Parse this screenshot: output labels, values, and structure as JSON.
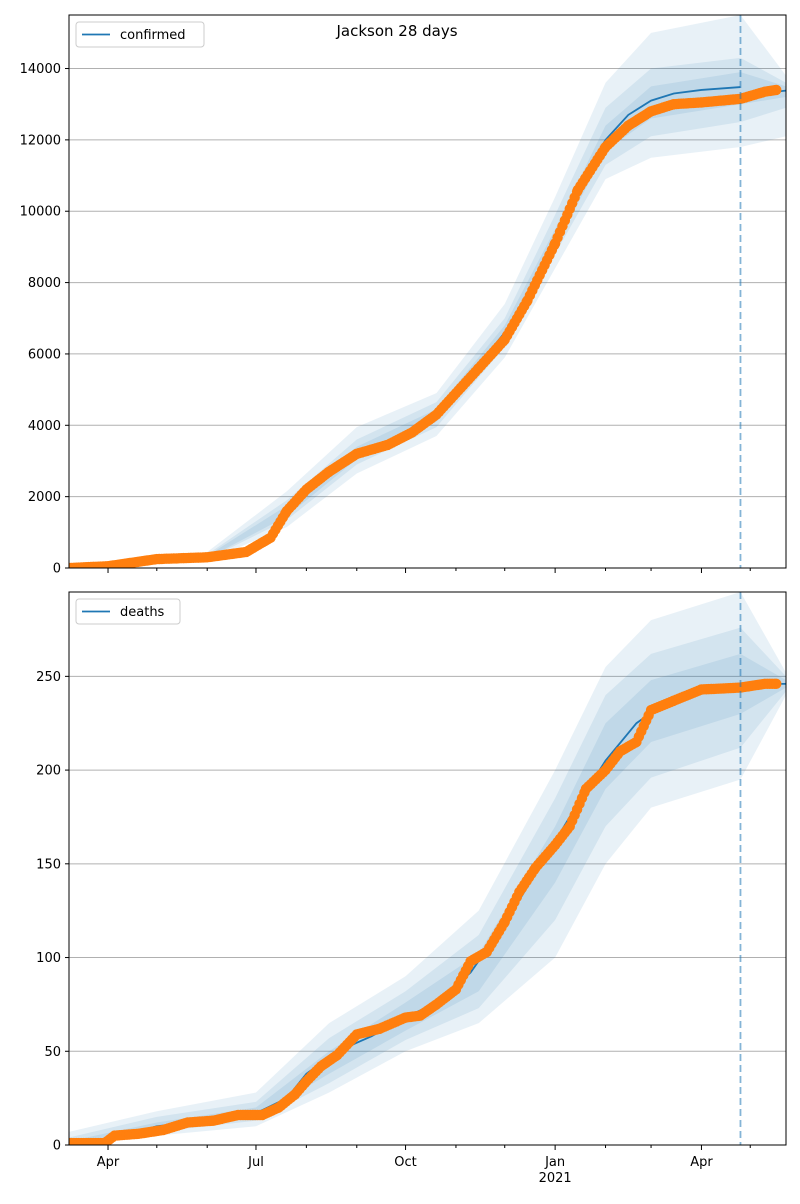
{
  "title": "Jackson 28 days",
  "colors": {
    "model": "#1f77b4",
    "observed": "#ff7f0e",
    "band": "#1f77b4",
    "grid": "#b0b0b0",
    "divider": "#1f77b4"
  },
  "chart_data": [
    {
      "type": "line",
      "legend": "top-left",
      "grid": "y",
      "series_name": "confirmed",
      "ylim": [
        0,
        15500
      ],
      "yticks": [
        0,
        2000,
        4000,
        6000,
        8000,
        10000,
        12000,
        14000
      ],
      "xlim": [
        "2020-03-08",
        "2021-05-23"
      ],
      "xtick_labels": [],
      "forecast_start": "2021-04-25",
      "model_line": [
        [
          "2020-03-08",
          0
        ],
        [
          "2020-04-01",
          60
        ],
        [
          "2020-05-01",
          230
        ],
        [
          "2020-06-01",
          300
        ],
        [
          "2020-06-25",
          450
        ],
        [
          "2020-07-10",
          850
        ],
        [
          "2020-07-20",
          1600
        ],
        [
          "2020-08-01",
          2200
        ],
        [
          "2020-08-15",
          2700
        ],
        [
          "2020-09-01",
          3200
        ],
        [
          "2020-09-20",
          3450
        ],
        [
          "2020-10-05",
          3800
        ],
        [
          "2020-10-20",
          4300
        ],
        [
          "2020-11-01",
          4900
        ],
        [
          "2020-11-15",
          5700
        ],
        [
          "2020-12-01",
          6600
        ],
        [
          "2020-12-15",
          7700
        ],
        [
          "2021-01-01",
          9200
        ],
        [
          "2021-01-15",
          10700
        ],
        [
          "2021-02-01",
          12000
        ],
        [
          "2021-02-15",
          12700
        ],
        [
          "2021-03-01",
          13100
        ],
        [
          "2021-03-15",
          13300
        ],
        [
          "2021-04-01",
          13400
        ],
        [
          "2021-04-25",
          13480
        ]
      ],
      "observed": [
        [
          "2020-03-08",
          0
        ],
        [
          "2020-04-01",
          50
        ],
        [
          "2020-05-01",
          250
        ],
        [
          "2020-06-01",
          300
        ],
        [
          "2020-06-25",
          450
        ],
        [
          "2020-07-10",
          850
        ],
        [
          "2020-07-20",
          1600
        ],
        [
          "2020-08-01",
          2200
        ],
        [
          "2020-08-15",
          2700
        ],
        [
          "2020-09-01",
          3200
        ],
        [
          "2020-09-20",
          3450
        ],
        [
          "2020-10-05",
          3800
        ],
        [
          "2020-10-20",
          4300
        ],
        [
          "2020-11-01",
          4900
        ],
        [
          "2020-11-15",
          5600
        ],
        [
          "2020-12-01",
          6400
        ],
        [
          "2020-12-15",
          7500
        ],
        [
          "2021-01-01",
          9100
        ],
        [
          "2021-01-15",
          10600
        ],
        [
          "2021-02-01",
          11800
        ],
        [
          "2021-02-15",
          12400
        ],
        [
          "2021-03-01",
          12800
        ],
        [
          "2021-03-15",
          13000
        ],
        [
          "2021-04-01",
          13050
        ],
        [
          "2021-04-25",
          13150
        ],
        [
          "2021-05-10",
          13350
        ],
        [
          "2021-05-17",
          13400
        ]
      ],
      "forecast_line": [
        [
          "2021-04-25",
          13250
        ],
        [
          "2021-05-23",
          13380
        ]
      ],
      "bands": [
        {
          "lower": [
            [
              "2020-03-08",
              0
            ],
            [
              "2020-06-01",
              200
            ],
            [
              "2020-07-20",
              1150
            ],
            [
              "2020-09-01",
              2650
            ],
            [
              "2020-10-20",
              3700
            ],
            [
              "2020-12-01",
              5900
            ],
            [
              "2021-01-01",
              8400
            ],
            [
              "2021-02-01",
              10900
            ],
            [
              "2021-03-01",
              11500
            ],
            [
              "2021-04-25",
              11800
            ],
            [
              "2021-05-23",
              12100
            ]
          ],
          "upper": [
            [
              "2020-03-08",
              0
            ],
            [
              "2020-06-01",
              450
            ],
            [
              "2020-07-20",
              2150
            ],
            [
              "2020-09-01",
              3950
            ],
            [
              "2020-10-20",
              4900
            ],
            [
              "2020-12-01",
              7400
            ],
            [
              "2021-01-01",
              10400
            ],
            [
              "2021-02-01",
              13600
            ],
            [
              "2021-03-01",
              15000
            ],
            [
              "2021-04-25",
              15500
            ],
            [
              "2021-05-23",
              13800
            ]
          ]
        },
        {
          "lower": [
            [
              "2020-03-08",
              0
            ],
            [
              "2020-06-01",
              240
            ],
            [
              "2020-07-20",
              1350
            ],
            [
              "2020-09-01",
              2900
            ],
            [
              "2020-10-20",
              3950
            ],
            [
              "2020-12-01",
              6200
            ],
            [
              "2021-01-01",
              8800
            ],
            [
              "2021-02-01",
              11300
            ],
            [
              "2021-03-01",
              12100
            ],
            [
              "2021-04-25",
              12500
            ],
            [
              "2021-05-23",
              12900
            ]
          ],
          "upper": [
            [
              "2020-03-08",
              0
            ],
            [
              "2020-06-01",
              380
            ],
            [
              "2020-07-20",
              1900
            ],
            [
              "2020-09-01",
              3600
            ],
            [
              "2020-10-20",
              4650
            ],
            [
              "2020-12-01",
              7000
            ],
            [
              "2021-01-01",
              9900
            ],
            [
              "2021-02-01",
              12900
            ],
            [
              "2021-03-01",
              14000
            ],
            [
              "2021-04-25",
              14300
            ],
            [
              "2021-05-23",
              13600
            ]
          ]
        },
        {
          "lower": [
            [
              "2020-03-08",
              0
            ],
            [
              "2020-06-01",
              270
            ],
            [
              "2020-07-20",
              1450
            ],
            [
              "2020-09-01",
              3050
            ],
            [
              "2020-10-20",
              4100
            ],
            [
              "2020-12-01",
              6400
            ],
            [
              "2021-01-01",
              9000
            ],
            [
              "2021-02-01",
              11700
            ],
            [
              "2021-03-01",
              12600
            ],
            [
              "2021-04-25",
              13000
            ],
            [
              "2021-05-23",
              13200
            ]
          ],
          "upper": [
            [
              "2020-03-08",
              0
            ],
            [
              "2020-06-01",
              340
            ],
            [
              "2020-07-20",
              1750
            ],
            [
              "2020-09-01",
              3400
            ],
            [
              "2020-10-20",
              4450
            ],
            [
              "2020-12-01",
              6800
            ],
            [
              "2021-01-01",
              9500
            ],
            [
              "2021-02-01",
              12400
            ],
            [
              "2021-03-01",
              13500
            ],
            [
              "2021-04-25",
              13900
            ],
            [
              "2021-05-23",
              13500
            ]
          ]
        }
      ]
    },
    {
      "type": "line",
      "legend": "top-left",
      "grid": "y",
      "series_name": "deaths",
      "ylim": [
        0,
        295
      ],
      "yticks": [
        0,
        50,
        100,
        150,
        200,
        250
      ],
      "xlim": [
        "2020-03-08",
        "2021-05-23"
      ],
      "xtick_labels": [
        "Apr",
        "Jul",
        "Oct",
        "Jan",
        "Apr"
      ],
      "xtick_dates": [
        "2020-04-01",
        "2020-07-01",
        "2020-10-01",
        "2021-01-01",
        "2021-04-01"
      ],
      "year_label": "2021",
      "forecast_start": "2021-04-25",
      "model_line": [
        [
          "2020-03-08",
          0
        ],
        [
          "2020-04-01",
          3
        ],
        [
          "2020-05-01",
          10
        ],
        [
          "2020-06-01",
          13
        ],
        [
          "2020-07-01",
          17
        ],
        [
          "2020-07-20",
          25
        ],
        [
          "2020-08-01",
          38
        ],
        [
          "2020-08-20",
          50
        ],
        [
          "2020-09-10",
          58
        ],
        [
          "2020-10-01",
          68
        ],
        [
          "2020-10-20",
          76
        ],
        [
          "2020-11-10",
          92
        ],
        [
          "2020-12-01",
          118
        ],
        [
          "2020-12-20",
          145
        ],
        [
          "2021-01-10",
          175
        ],
        [
          "2021-02-01",
          205
        ],
        [
          "2021-02-20",
          225
        ],
        [
          "2021-03-10",
          236
        ],
        [
          "2021-04-01",
          242
        ],
        [
          "2021-04-25",
          245
        ]
      ],
      "observed": [
        [
          "2020-03-08",
          1
        ],
        [
          "2020-03-30",
          1
        ],
        [
          "2020-04-05",
          5
        ],
        [
          "2020-04-20",
          6
        ],
        [
          "2020-05-05",
          8
        ],
        [
          "2020-05-20",
          12
        ],
        [
          "2020-06-05",
          13
        ],
        [
          "2020-06-20",
          16
        ],
        [
          "2020-07-05",
          16
        ],
        [
          "2020-07-15",
          20
        ],
        [
          "2020-07-25",
          27
        ],
        [
          "2020-08-01",
          34
        ],
        [
          "2020-08-10",
          42
        ],
        [
          "2020-08-20",
          48
        ],
        [
          "2020-09-01",
          59
        ],
        [
          "2020-09-15",
          62
        ],
        [
          "2020-10-01",
          68
        ],
        [
          "2020-10-10",
          69
        ],
        [
          "2020-10-20",
          75
        ],
        [
          "2020-11-01",
          83
        ],
        [
          "2020-11-10",
          98
        ],
        [
          "2020-11-20",
          103
        ],
        [
          "2020-12-01",
          119
        ],
        [
          "2020-12-10",
          135
        ],
        [
          "2020-12-20",
          148
        ],
        [
          "2021-01-01",
          160
        ],
        [
          "2021-01-10",
          170
        ],
        [
          "2021-01-20",
          190
        ],
        [
          "2021-02-01",
          200
        ],
        [
          "2021-02-10",
          210
        ],
        [
          "2021-02-20",
          215
        ],
        [
          "2021-03-01",
          232
        ],
        [
          "2021-03-15",
          237
        ],
        [
          "2021-04-01",
          243
        ],
        [
          "2021-04-25",
          244
        ],
        [
          "2021-05-10",
          246
        ],
        [
          "2021-05-17",
          246
        ]
      ],
      "forecast_line": [
        [
          "2021-04-25",
          246
        ],
        [
          "2021-05-23",
          246
        ]
      ],
      "bands": [
        {
          "lower": [
            [
              "2020-03-08",
              0
            ],
            [
              "2020-05-01",
              5
            ],
            [
              "2020-07-01",
              10
            ],
            [
              "2020-08-15",
              28
            ],
            [
              "2020-10-01",
              50
            ],
            [
              "2020-11-15",
              65
            ],
            [
              "2021-01-01",
              100
            ],
            [
              "2021-02-01",
              150
            ],
            [
              "2021-03-01",
              180
            ],
            [
              "2021-04-25",
              195
            ],
            [
              "2021-05-23",
              240
            ]
          ],
          "upper": [
            [
              "2020-03-08",
              7
            ],
            [
              "2020-05-01",
              18
            ],
            [
              "2020-07-01",
              28
            ],
            [
              "2020-08-15",
              65
            ],
            [
              "2020-10-01",
              90
            ],
            [
              "2020-11-15",
              125
            ],
            [
              "2021-01-01",
              200
            ],
            [
              "2021-02-01",
              255
            ],
            [
              "2021-03-01",
              280
            ],
            [
              "2021-04-25",
              295
            ],
            [
              "2021-05-23",
              252
            ]
          ]
        },
        {
          "lower": [
            [
              "2020-03-08",
              0
            ],
            [
              "2020-05-01",
              7
            ],
            [
              "2020-07-01",
              13
            ],
            [
              "2020-08-15",
              33
            ],
            [
              "2020-10-01",
              56
            ],
            [
              "2020-11-15",
              73
            ],
            [
              "2021-01-01",
              120
            ],
            [
              "2021-02-01",
              170
            ],
            [
              "2021-03-01",
              196
            ],
            [
              "2021-04-25",
              212
            ],
            [
              "2021-05-23",
              242
            ]
          ],
          "upper": [
            [
              "2020-03-08",
              4
            ],
            [
              "2020-05-01",
              15
            ],
            [
              "2020-07-01",
              23
            ],
            [
              "2020-08-15",
              57
            ],
            [
              "2020-10-01",
              82
            ],
            [
              "2020-11-15",
              112
            ],
            [
              "2021-01-01",
              185
            ],
            [
              "2021-02-01",
              240
            ],
            [
              "2021-03-01",
              262
            ],
            [
              "2021-04-25",
              276
            ],
            [
              "2021-05-23",
              250
            ]
          ]
        },
        {
          "lower": [
            [
              "2020-03-08",
              0
            ],
            [
              "2020-05-01",
              9
            ],
            [
              "2020-07-01",
              15
            ],
            [
              "2020-08-15",
              38
            ],
            [
              "2020-10-01",
              61
            ],
            [
              "2020-11-15",
              82
            ],
            [
              "2021-01-01",
              140
            ],
            [
              "2021-02-01",
              190
            ],
            [
              "2021-03-01",
              215
            ],
            [
              "2021-04-25",
              230
            ],
            [
              "2021-05-23",
              244
            ]
          ],
          "upper": [
            [
              "2020-03-08",
              2
            ],
            [
              "2020-05-01",
              12
            ],
            [
              "2020-07-01",
              20
            ],
            [
              "2020-08-15",
              50
            ],
            [
              "2020-10-01",
              76
            ],
            [
              "2020-11-15",
              102
            ],
            [
              "2021-01-01",
              170
            ],
            [
              "2021-02-01",
              225
            ],
            [
              "2021-03-01",
              248
            ],
            [
              "2021-04-25",
              262
            ],
            [
              "2021-05-23",
              248
            ]
          ]
        }
      ]
    }
  ]
}
